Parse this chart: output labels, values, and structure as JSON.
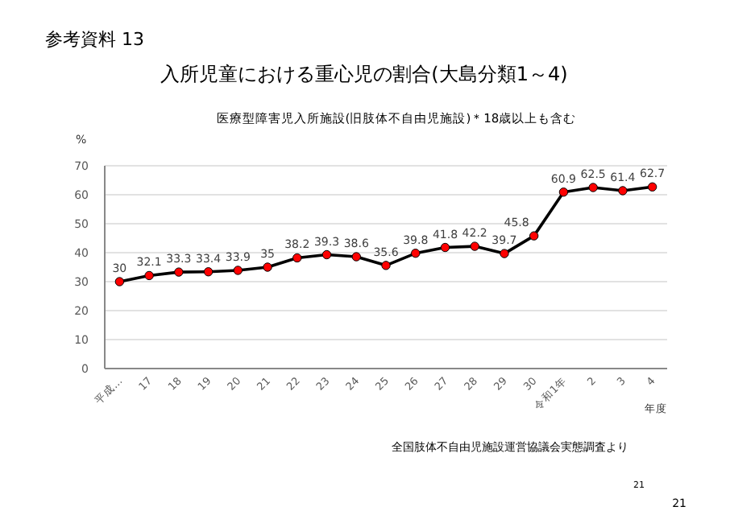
{
  "chart_data": {
    "type": "line",
    "title": "入所児童における重心児の割合(大島分類1～4)",
    "subtitle": "医療型障害児入所施設(旧肢体不自由児施設)＊18歳以上も含む",
    "ylabel": "%",
    "xlabel": "年度",
    "annotations": [
      "参考資料  13",
      "全国肢体不自由児施設運営協議会実態調査より",
      "21",
      "21"
    ],
    "categories": [
      "平成…",
      "17",
      "18",
      "19",
      "20",
      "21",
      "22",
      "23",
      "24",
      "25",
      "26",
      "27",
      "28",
      "29",
      "30",
      "令和1年",
      "2",
      "3",
      "4"
    ],
    "series": [
      {
        "color": "#000000",
        "values": [
          30,
          32.1,
          33.3,
          33.4,
          33.9,
          35,
          38.2,
          39.3,
          38.6,
          35.6,
          39.8,
          41.8,
          42.2,
          39.7,
          45.8,
          60.9,
          62.5,
          61.4,
          62.7
        ]
      }
    ],
    "ylim": [
      0,
      70
    ],
    "yticks": [
      0,
      10,
      20,
      30,
      40,
      50,
      60,
      70
    ],
    "grid": "y",
    "marker": "circle",
    "data_labels": true
  }
}
